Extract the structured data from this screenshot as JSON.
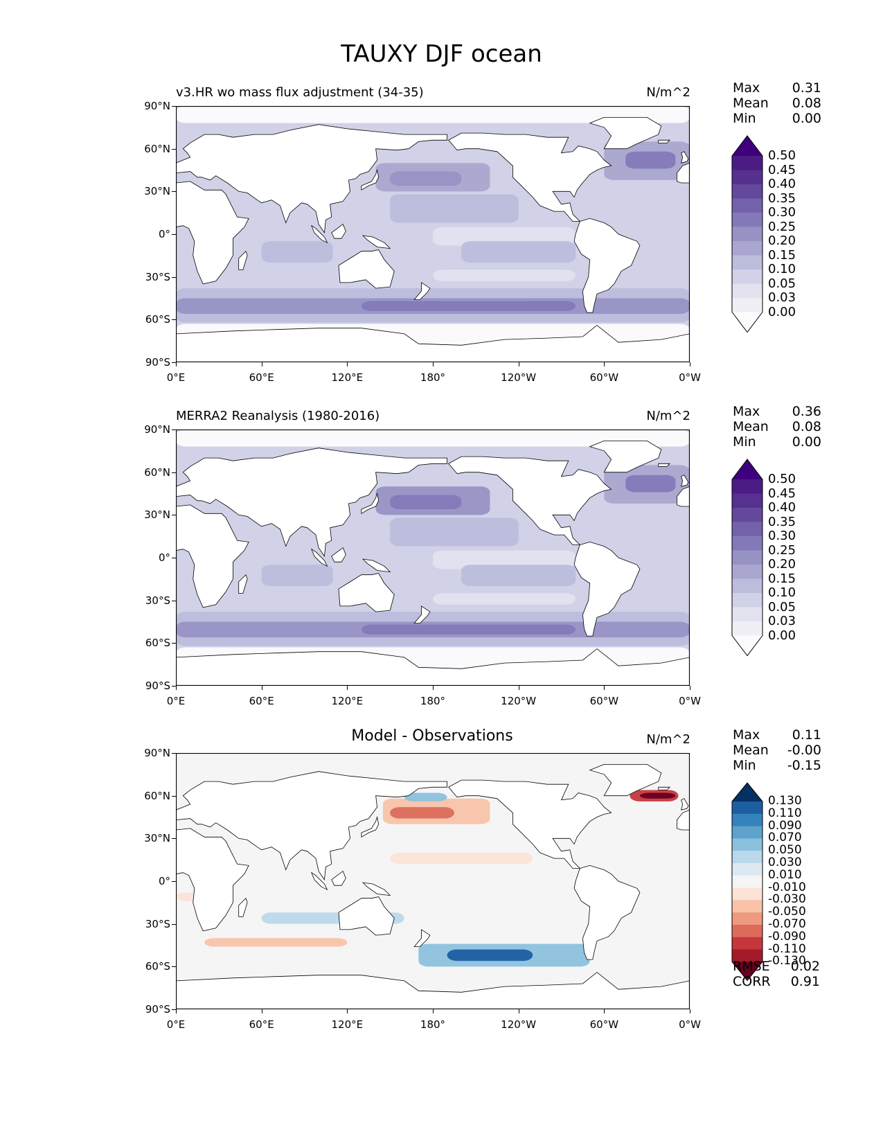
{
  "figure_title": "TAUXY DJF ocean",
  "chart_data": [
    {
      "type": "heatmap",
      "title": "v3.HR wo mass flux adjustment (34-35)",
      "units": "N/m^2",
      "stats": {
        "Max": "0.31",
        "Mean": "0.08",
        "Min": "0.00"
      },
      "colormap": "purples",
      "levels": [
        "0.00",
        "0.03",
        "0.05",
        "0.10",
        "0.15",
        "0.20",
        "0.25",
        "0.30",
        "0.35",
        "0.40",
        "0.45",
        "0.50"
      ],
      "colors": [
        "#fcfbfd",
        "#f0eff6",
        "#e3e2ef",
        "#d1d1e7",
        "#bcbcdc",
        "#a9a6cf",
        "#9792c4",
        "#8479b8",
        "#7461ab",
        "#64489c",
        "#56318f",
        "#4b1c84",
        "#3f007d"
      ],
      "xticks": [
        "0°E",
        "60°E",
        "120°E",
        "180°",
        "120°W",
        "60°W",
        "0°W"
      ],
      "yticks": [
        "90°N",
        "60°N",
        "30°N",
        "0°",
        "30°S",
        "60°S",
        "90°S"
      ],
      "xlim": [
        0,
        360
      ],
      "ylim": [
        -90,
        90
      ]
    },
    {
      "type": "heatmap",
      "title": "MERRA2 Reanalysis (1980-2016)",
      "units": "N/m^2",
      "stats": {
        "Max": "0.36",
        "Mean": "0.08",
        "Min": "0.00"
      },
      "colormap": "purples",
      "levels": [
        "0.00",
        "0.03",
        "0.05",
        "0.10",
        "0.15",
        "0.20",
        "0.25",
        "0.30",
        "0.35",
        "0.40",
        "0.45",
        "0.50"
      ],
      "colors": [
        "#fcfbfd",
        "#f0eff6",
        "#e3e2ef",
        "#d1d1e7",
        "#bcbcdc",
        "#a9a6cf",
        "#9792c4",
        "#8479b8",
        "#7461ab",
        "#64489c",
        "#56318f",
        "#4b1c84",
        "#3f007d"
      ],
      "xticks": [
        "0°E",
        "60°E",
        "120°E",
        "180°",
        "120°W",
        "60°W",
        "0°W"
      ],
      "yticks": [
        "90°N",
        "60°N",
        "30°N",
        "0°",
        "30°S",
        "60°S",
        "90°S"
      ],
      "xlim": [
        0,
        360
      ],
      "ylim": [
        -90,
        90
      ]
    },
    {
      "type": "heatmap",
      "title": "Model - Observations",
      "units": "N/m^2",
      "stats": {
        "Max": "0.11",
        "Mean": "-0.00",
        "Min": "-0.15"
      },
      "metrics": {
        "RMSE": "0.02",
        "CORR": "0.91"
      },
      "colormap": "RdBu",
      "levels": [
        "-0.130",
        "-0.110",
        "-0.090",
        "-0.070",
        "-0.050",
        "-0.030",
        "-0.010",
        "0.010",
        "0.030",
        "0.050",
        "0.070",
        "0.090",
        "0.110",
        "0.130"
      ],
      "colors": [
        "#67001f",
        "#a31a2b",
        "#c5373d",
        "#dc6b5c",
        "#ef9a7e",
        "#f8c3a8",
        "#fbe3d6",
        "#f5f5f5",
        "#dde9f2",
        "#bad8ea",
        "#8cc1de",
        "#5fa3cc",
        "#3583bd",
        "#1c5ea1",
        "#053061"
      ],
      "xticks": [
        "0°E",
        "60°E",
        "120°E",
        "180°",
        "120°W",
        "60°W",
        "0°W"
      ],
      "yticks": [
        "90°N",
        "60°N",
        "30°N",
        "0°",
        "30°S",
        "60°S",
        "90°S"
      ],
      "xlim": [
        0,
        360
      ],
      "ylim": [
        -90,
        90
      ]
    }
  ]
}
